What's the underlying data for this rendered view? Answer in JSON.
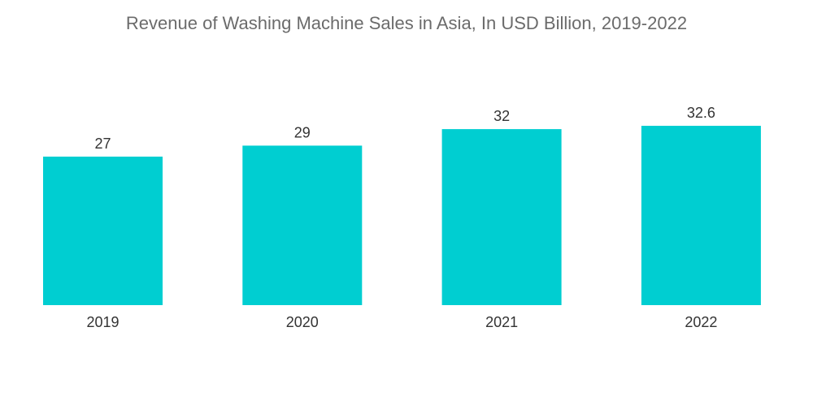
{
  "chart_data": {
    "type": "bar",
    "title": "Revenue of Washing Machine Sales in Asia, In USD Billion, 2019-2022",
    "categories": [
      "2019",
      "2020",
      "2021",
      "2022"
    ],
    "values": [
      27,
      29,
      32,
      32.6
    ],
    "data_labels": [
      "27",
      "29",
      "32",
      "32.6"
    ],
    "xlabel": "",
    "ylabel": "",
    "ylim": [
      0,
      33
    ],
    "grid": false,
    "legend": "none",
    "bar_color": "#00CED1"
  }
}
